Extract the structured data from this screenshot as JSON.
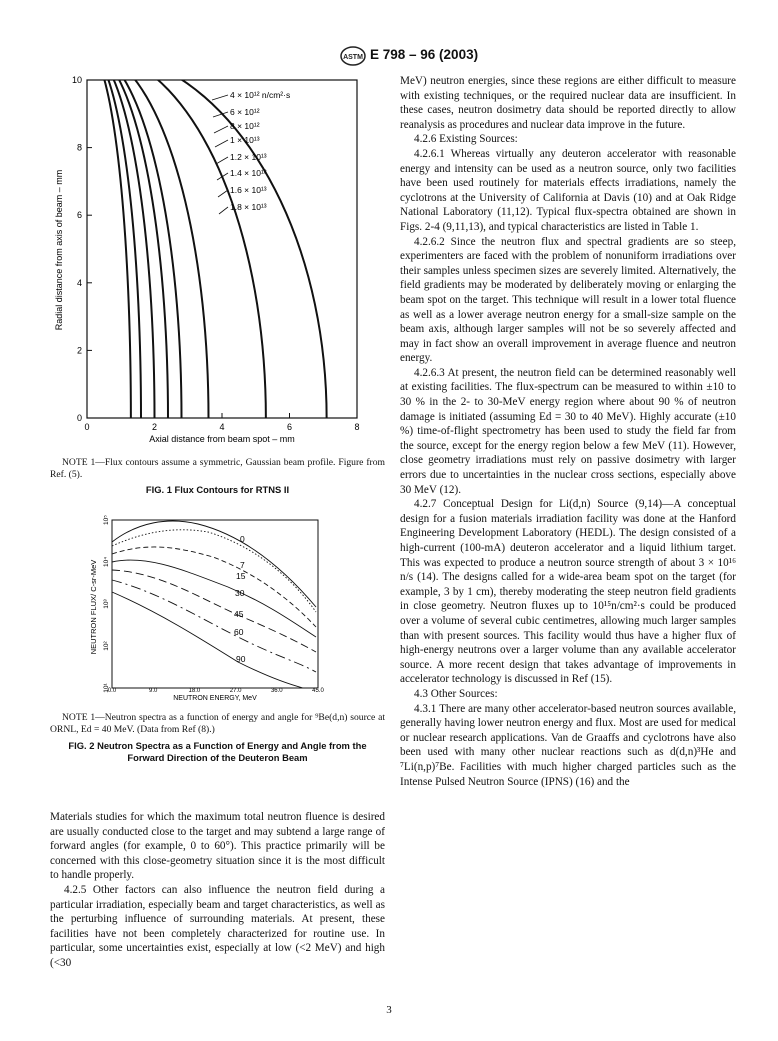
{
  "header": {
    "designation": "E 798 – 96 (2003)"
  },
  "figure1": {
    "xticks": [
      0,
      2,
      4,
      6,
      8
    ],
    "yticks": [
      0,
      2,
      4,
      6,
      8,
      10
    ],
    "xlabel": "Axial distance from beam spot – mm",
    "ylabel": "Radial distance from axis of beam – mm",
    "curve_labels": [
      "4 × 10¹² n/cm²·s",
      "6 × 10¹²",
      "8 × 10¹²",
      "1 × 10¹³",
      "1.2 × 10¹³",
      "1.4 × 10¹³",
      "1.6 × 10¹³",
      "1.8 × 10¹³"
    ],
    "note": "NOTE 1—Flux contours assume a symmetric, Gaussian beam profile. Figure from Ref. (5).",
    "caption": "FIG. 1 Flux Contours for RTNS II"
  },
  "figure2": {
    "xticks": [
      "0.0",
      "9.0",
      "18.0",
      "27.0",
      "36.0",
      "45.0"
    ],
    "yticks": [
      "10¹",
      "10²",
      "10³",
      "10⁴",
      "10⁵"
    ],
    "xlabel": "NEUTRON ENERGY, MeV",
    "ylabel": "NEUTRON FLUX/ C-sr-MeV",
    "angle_labels": [
      "0",
      "7",
      "15",
      "30",
      "45",
      "60",
      "90"
    ],
    "note": "NOTE 1—Neutron spectra as a function of energy and angle for ⁹Be(d,n) source at ORNL, Ed = 40 MeV. (Data from Ref (8).)",
    "caption": "FIG. 2 Neutron Spectra as a Function of Energy and Angle from the Forward Direction of the Deuteron Beam"
  },
  "left_text": [
    "Materials studies for which the maximum total neutron fluence is desired are usually conducted close to the target and may subtend a large range of forward angles (for example, 0 to 60°). This practice primarily will be concerned with this close-geometry situation since it is the most difficult to handle properly.",
    "4.2.5 Other factors can also influence the neutron field during a particular irradiation, especially beam and target characteristics, as well as the perturbing influence of surrounding materials. At present, these facilities have not been completely characterized for routine use. In particular, some uncertainties exist, especially at low (<2 MeV) and high (<30"
  ],
  "right_text": [
    "MeV) neutron energies, since these regions are either difficult to measure with existing techniques, or the required nuclear data are insufficient. In these cases, neutron dosimetry data should be reported directly to allow reanalysis as procedures and nuclear data improve in the future.",
    "4.2.6 Existing Sources:",
    "4.2.6.1 Whereas virtually any deuteron accelerator with reasonable energy and intensity can be used as a neutron source, only two facilities have been used routinely for materials effects irradiations, namely the cyclotrons at the University of California at Davis (10) and at Oak Ridge National Laboratory (11,12). Typical flux-spectra obtained are shown in Figs. 2-4 (9,11,13), and typical characteristics are listed in Table 1.",
    "4.2.6.2 Since the neutron flux and spectral gradients are so steep, experimenters are faced with the problem of nonuniform irradiations over their samples unless specimen sizes are severely limited. Alternatively, the field gradients may be moderated by deliberately moving or enlarging the beam spot on the target. This technique will result in a lower total fluence as well as a lower average neutron energy for a small-size sample on the beam axis, although larger samples will not be so severely affected and may in fact show an overall improvement in average fluence and neutron energy.",
    "4.2.6.3 At present, the neutron field can be determined reasonably well at existing facilities. The flux-spectrum can be measured to within ±10 to 30 % in the 2- to 30-MeV energy region where about 90 % of neutron damage is initiated (assuming Ed = 30 to 40 MeV). Highly accurate (±10 %) time-of-flight spectrometry has been used to study the field far from the source, except for the energy region below a few MeV (11). However, close geometry irradiations must rely on passive dosimetry with larger errors due to uncertainties in the nuclear cross sections, especially above 30 MeV (12).",
    "4.2.7 Conceptual Design for Li(d,n) Source (9,14)—A conceptual design for a fusion materials irradiation facility was done at the Hanford Engineering Development Laboratory (HEDL). The design consisted of a high-current (100-mA) deuteron accelerator and a liquid lithium target. This was expected to produce a neutron source strength of about 3 × 10¹⁶ n/s (14). The designs called for a wide-area beam spot on the target (for example, 3 by 1 cm), thereby moderating the steep neutron field gradients in close geometry. Neutron fluxes up to 10¹⁵n/cm²·s could be produced over a volume of several cubic centimetres, allowing much larger samples than with present sources. This facility would thus have a higher flux of high-energy neutrons over a larger volume than any available accelerator source. A more recent design that takes advantage of improvements in accelerator technology is discussed in Ref (15).",
    "4.3 Other Sources:",
    "4.3.1 There are many other accelerator-based neutron sources available, generally having lower neutron energy and flux. Most are used for medical or nuclear research applications. Van de Graaffs and cyclotrons have also been used with many other nuclear reactions such as d(d,n)³He and ⁷Li(n,p)⁷Be. Facilities with much higher charged particles such as the Intense Pulsed Neutron Source (IPNS) (16) and the"
  ],
  "page_number": "3"
}
